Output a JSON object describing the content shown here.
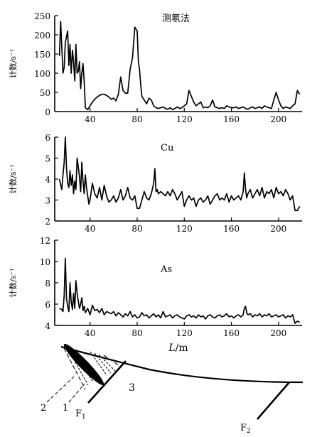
{
  "chart_data": [
    {
      "type": "line",
      "title": "测氡法",
      "ylabel": "计数/s⁻¹",
      "xlabel": "",
      "xlim": [
        10,
        220
      ],
      "ylim": [
        0,
        250
      ],
      "xticks": [
        40,
        80,
        120,
        160,
        200
      ],
      "yticks": [
        0,
        50,
        100,
        150,
        200,
        250
      ],
      "x": [
        14,
        15,
        17,
        18,
        19,
        21,
        22,
        23,
        24,
        25,
        26,
        27,
        28,
        29,
        30,
        31,
        32,
        33,
        34,
        35,
        36,
        38,
        40,
        42,
        44,
        46,
        48,
        50,
        52,
        54,
        56,
        58,
        60,
        62,
        64,
        66,
        68,
        70,
        72,
        74,
        76,
        78,
        80,
        81,
        82,
        83,
        84,
        86,
        88,
        90,
        92,
        94,
        96,
        98,
        100,
        102,
        104,
        106,
        108,
        110,
        112,
        114,
        116,
        118,
        120,
        122,
        124,
        126,
        128,
        130,
        132,
        134,
        136,
        138,
        140,
        142,
        144,
        146,
        148,
        150,
        152,
        154,
        156,
        158,
        160,
        162,
        164,
        166,
        168,
        170,
        172,
        174,
        176,
        178,
        180,
        182,
        184,
        186,
        188,
        190,
        192,
        194,
        196,
        198,
        200,
        202,
        204,
        206,
        208,
        210,
        212,
        214,
        216,
        218
      ],
      "y": [
        145,
        235,
        100,
        115,
        180,
        210,
        120,
        175,
        100,
        160,
        130,
        80,
        175,
        100,
        105,
        130,
        60,
        100,
        125,
        80,
        10,
        5,
        15,
        25,
        32,
        38,
        42,
        45,
        45,
        42,
        38,
        32,
        35,
        28,
        45,
        90,
        55,
        48,
        48,
        110,
        140,
        220,
        210,
        130,
        110,
        70,
        40,
        30,
        20,
        35,
        30,
        15,
        10,
        8,
        10,
        12,
        8,
        6,
        10,
        5,
        8,
        12,
        8,
        10,
        15,
        20,
        55,
        40,
        25,
        15,
        20,
        25,
        10,
        12,
        10,
        15,
        30,
        12,
        10,
        8,
        10,
        8,
        15,
        12,
        10,
        10,
        12,
        8,
        10,
        12,
        8,
        6,
        10,
        12,
        8,
        10,
        12,
        8,
        15,
        12,
        10,
        8,
        30,
        50,
        30,
        15,
        8,
        12,
        10,
        8,
        15,
        20,
        55,
        45
      ]
    },
    {
      "type": "line",
      "title": "Cu",
      "ylabel": "计数/s⁻¹",
      "xlabel": "",
      "xlim": [
        10,
        220
      ],
      "ylim": [
        2,
        6
      ],
      "xticks": [
        40,
        80,
        120,
        160,
        200
      ],
      "yticks": [
        2,
        3,
        4,
        5,
        6
      ],
      "x": [
        14,
        16,
        17,
        18,
        19,
        20,
        21,
        22,
        23,
        24,
        25,
        26,
        27,
        28,
        29,
        30,
        31,
        32,
        33,
        34,
        35,
        36,
        37,
        38,
        39,
        40,
        42,
        44,
        46,
        48,
        50,
        52,
        54,
        56,
        58,
        60,
        62,
        64,
        66,
        68,
        70,
        72,
        74,
        76,
        78,
        80,
        82,
        84,
        86,
        88,
        90,
        92,
        94,
        95,
        96,
        97,
        98,
        100,
        102,
        104,
        106,
        108,
        110,
        112,
        114,
        116,
        118,
        120,
        122,
        124,
        126,
        128,
        130,
        132,
        134,
        136,
        138,
        140,
        142,
        144,
        146,
        148,
        150,
        152,
        154,
        156,
        158,
        160,
        162,
        164,
        166,
        168,
        170,
        171,
        172,
        173,
        174,
        176,
        178,
        180,
        182,
        184,
        186,
        188,
        190,
        192,
        194,
        196,
        198,
        200,
        202,
        204,
        206,
        208,
        210,
        212,
        214,
        216,
        218
      ],
      "y": [
        4.0,
        3.5,
        4.2,
        4.8,
        6.0,
        4.5,
        3.8,
        3.6,
        4.4,
        3.7,
        4.2,
        3.3,
        3.9,
        3.5,
        5.0,
        4.6,
        4.1,
        3.4,
        4.8,
        3.9,
        3.3,
        4.2,
        3.6,
        3.2,
        2.8,
        3.0,
        3.8,
        3.3,
        3.1,
        3.6,
        3.0,
        3.7,
        3.2,
        2.9,
        3.0,
        3.2,
        2.9,
        3.1,
        3.5,
        3.0,
        3.2,
        3.6,
        3.1,
        3.0,
        3.2,
        2.6,
        2.6,
        3.0,
        3.4,
        3.1,
        3.0,
        3.3,
        3.8,
        4.5,
        3.4,
        3.5,
        3.3,
        3.4,
        3.3,
        3.2,
        3.4,
        3.2,
        3.5,
        3.3,
        3.0,
        3.2,
        3.4,
        2.7,
        3.0,
        3.2,
        3.0,
        3.1,
        2.7,
        3.0,
        3.1,
        2.9,
        3.0,
        3.2,
        2.8,
        3.0,
        3.2,
        3.3,
        3.0,
        3.1,
        3.0,
        3.3,
        2.9,
        3.2,
        3.0,
        3.1,
        3.2,
        3.0,
        3.4,
        4.3,
        3.5,
        3.1,
        3.3,
        3.5,
        3.1,
        3.3,
        3.5,
        3.2,
        3.6,
        3.1,
        3.4,
        3.3,
        3.5,
        3.1,
        3.6,
        3.3,
        3.4,
        3.2,
        3.5,
        3.3,
        3.0,
        3.2,
        2.5,
        2.5,
        2.7
      ]
    },
    {
      "type": "line",
      "title": "As",
      "ylabel": "计数/s⁻¹",
      "xlabel": "L/m",
      "xlim": [
        10,
        220
      ],
      "ylim": [
        4,
        12
      ],
      "xticks": [
        40,
        80,
        120,
        160,
        200
      ],
      "yticks": [
        4,
        6,
        8,
        10,
        12
      ],
      "x": [
        14,
        16,
        17,
        18,
        19,
        20,
        21,
        22,
        23,
        24,
        25,
        26,
        27,
        28,
        29,
        30,
        31,
        32,
        33,
        34,
        35,
        36,
        38,
        40,
        42,
        44,
        46,
        48,
        50,
        52,
        54,
        56,
        58,
        60,
        62,
        64,
        66,
        68,
        70,
        72,
        74,
        76,
        78,
        80,
        82,
        84,
        86,
        88,
        90,
        92,
        94,
        96,
        98,
        100,
        102,
        104,
        106,
        108,
        110,
        112,
        114,
        116,
        118,
        120,
        122,
        124,
        126,
        128,
        130,
        132,
        134,
        136,
        138,
        140,
        142,
        144,
        146,
        148,
        150,
        152,
        154,
        156,
        158,
        160,
        162,
        164,
        166,
        168,
        170,
        171,
        172,
        173,
        174,
        176,
        178,
        180,
        182,
        184,
        186,
        188,
        190,
        192,
        194,
        196,
        198,
        200,
        202,
        204,
        206,
        208,
        210,
        212,
        214,
        216,
        218
      ],
      "y": [
        5.6,
        5.5,
        5.3,
        6.8,
        10.3,
        6.5,
        5.8,
        5.3,
        8.0,
        6.2,
        5.5,
        7.0,
        5.6,
        8.2,
        7.0,
        6.3,
        5.6,
        6.0,
        6.6,
        5.4,
        5.8,
        5.2,
        5.6,
        5.0,
        5.9,
        5.4,
        5.5,
        5.2,
        5.6,
        5.0,
        5.3,
        5.2,
        5.1,
        5.3,
        4.9,
        5.2,
        5.0,
        4.8,
        5.1,
        4.9,
        5.3,
        4.8,
        5.0,
        4.7,
        4.8,
        5.2,
        4.9,
        5.0,
        4.7,
        4.9,
        5.1,
        4.8,
        5.0,
        4.7,
        5.3,
        4.8,
        4.9,
        5.0,
        4.7,
        4.9,
        5.0,
        4.8,
        4.7,
        4.6,
        4.9,
        5.0,
        4.8,
        4.9,
        4.7,
        5.0,
        4.8,
        4.9,
        4.6,
        4.9,
        5.0,
        4.8,
        4.7,
        4.9,
        5.0,
        4.8,
        4.9,
        5.1,
        4.8,
        4.9,
        4.7,
        4.9,
        5.0,
        4.8,
        5.0,
        5.6,
        5.8,
        5.2,
        5.0,
        5.1,
        4.8,
        5.0,
        4.9,
        5.1,
        4.8,
        5.0,
        4.9,
        5.1,
        4.8,
        4.9,
        5.0,
        4.8,
        4.9,
        5.0,
        4.7,
        4.9,
        4.8,
        5.0,
        4.2,
        4.4,
        4.3
      ]
    }
  ],
  "section": {
    "labels": {
      "zone1": "1",
      "zone2": "2",
      "zone3": "3",
      "fault1": "F",
      "fault1_sub": "1",
      "fault2": "F",
      "fault2_sub": "2"
    }
  }
}
